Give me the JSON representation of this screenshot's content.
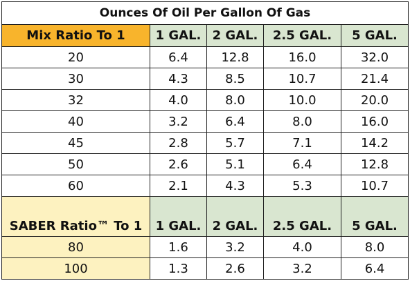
{
  "title": "Ounces Of Oil Per Gallon Of Gas",
  "mix_table": {
    "row_header": "Mix Ratio To 1",
    "columns": [
      "1 GAL.",
      "2 GAL.",
      "2.5 GAL.",
      "5 GAL."
    ],
    "rows": [
      {
        "ratio": "20",
        "values": [
          "6.4",
          "12.8",
          "16.0",
          "32.0"
        ]
      },
      {
        "ratio": "30",
        "values": [
          "4.3",
          "8.5",
          "10.7",
          "21.4"
        ]
      },
      {
        "ratio": "32",
        "values": [
          "4.0",
          "8.0",
          "10.0",
          "20.0"
        ]
      },
      {
        "ratio": "40",
        "values": [
          "3.2",
          "6.4",
          "8.0",
          "16.0"
        ]
      },
      {
        "ratio": "45",
        "values": [
          "2.8",
          "5.7",
          "7.1",
          "14.2"
        ]
      },
      {
        "ratio": "50",
        "values": [
          "2.6",
          "5.1",
          "6.4",
          "12.8"
        ]
      },
      {
        "ratio": "60",
        "values": [
          "2.1",
          "4.3",
          "5.3",
          "10.7"
        ]
      }
    ]
  },
  "saber_table": {
    "row_header": "SABER Ratio™ To 1",
    "columns": [
      "1 GAL.",
      "2 GAL.",
      "2.5 GAL.",
      "5 GAL."
    ],
    "rows": [
      {
        "ratio": "80",
        "values": [
          "1.6",
          "3.2",
          "4.0",
          "8.0"
        ]
      },
      {
        "ratio": "100",
        "values": [
          "1.3",
          "2.6",
          "3.2",
          "6.4"
        ]
      }
    ]
  },
  "colors": {
    "mix_header_fill": "#f8b42c",
    "column_header_fill": "#d9e6d0",
    "saber_fill": "#fdf2c0",
    "border": "#1f1f1f"
  }
}
